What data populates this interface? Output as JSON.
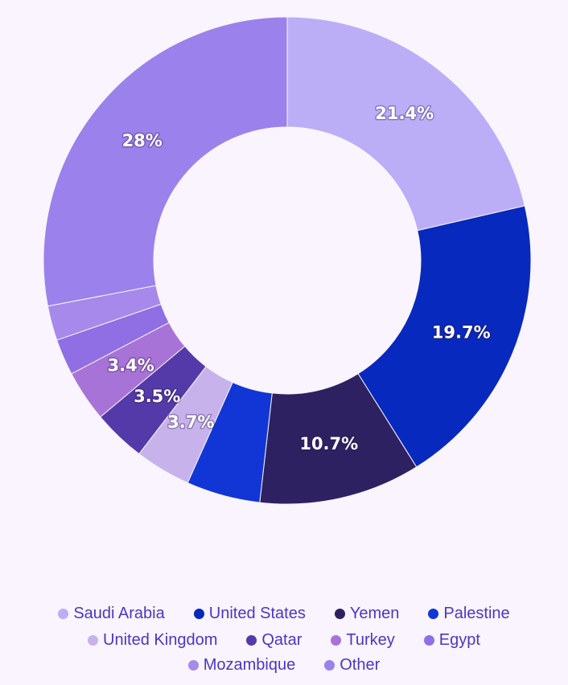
{
  "chart_data": {
    "type": "pie",
    "categories": [
      "Saudi Arabia",
      "United States",
      "Yemen",
      "Palestine",
      "United Kingdom",
      "Qatar",
      "Turkey",
      "Egypt",
      "Mozambique",
      "Other"
    ],
    "values": [
      21.4,
      19.7,
      10.7,
      4.9,
      3.7,
      3.5,
      3.4,
      2.4,
      2.3,
      28.0
    ],
    "labels": [
      "21.4%",
      "19.7%",
      "10.7%",
      "",
      "3.7%",
      "3.5%",
      "3.4%",
      "",
      "",
      "28%"
    ],
    "colors": [
      "#bbaef7",
      "#0829bd",
      "#2e2161",
      "#1236d6",
      "#c7b2ec",
      "#543aa8",
      "#a873d6",
      "#8f6fe3",
      "#a689ea",
      "#9b81ec"
    ],
    "legend_position": "bottom",
    "donut": true
  },
  "legend": {
    "rows": [
      [
        0,
        1,
        2,
        3
      ],
      [
        4,
        5,
        6,
        7
      ],
      [
        8,
        9
      ]
    ]
  }
}
